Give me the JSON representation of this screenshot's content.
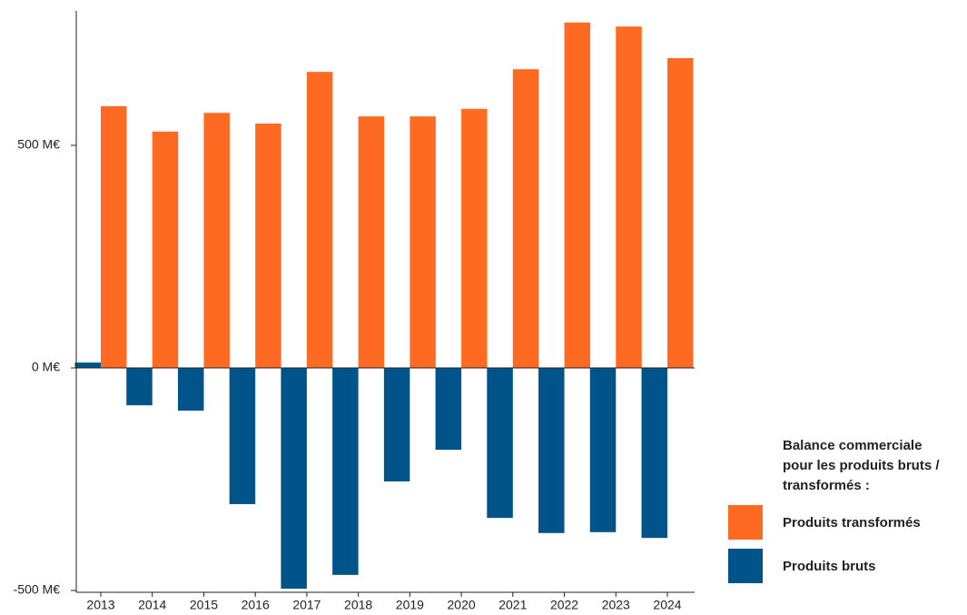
{
  "chart_data": {
    "type": "bar",
    "categories": [
      "2013",
      "2014",
      "2015",
      "2016",
      "2017",
      "2018",
      "2019",
      "2020",
      "2021",
      "2022",
      "2023",
      "2024"
    ],
    "series": [
      {
        "name": "Produits transformés",
        "color": "#ff6a22",
        "values": [
          588,
          531,
          573,
          549,
          665,
          565,
          565,
          582,
          671,
          776,
          767,
          696
        ]
      },
      {
        "name": "Produits bruts",
        "color": "#00548a",
        "values": [
          12,
          -84,
          -96,
          -306,
          -496,
          -465,
          -255,
          -184,
          -337,
          -371,
          -369,
          -382
        ]
      }
    ],
    "ylim": [
      -500,
      800
    ],
    "yticks": [
      {
        "value": -500,
        "label": "-500 M€"
      },
      {
        "value": 0,
        "label": "0 M€"
      },
      {
        "value": 500,
        "label": "500 M€"
      }
    ],
    "legend_title": "Balance commerciale pour les produits bruts / transformés :",
    "legend": "right"
  }
}
